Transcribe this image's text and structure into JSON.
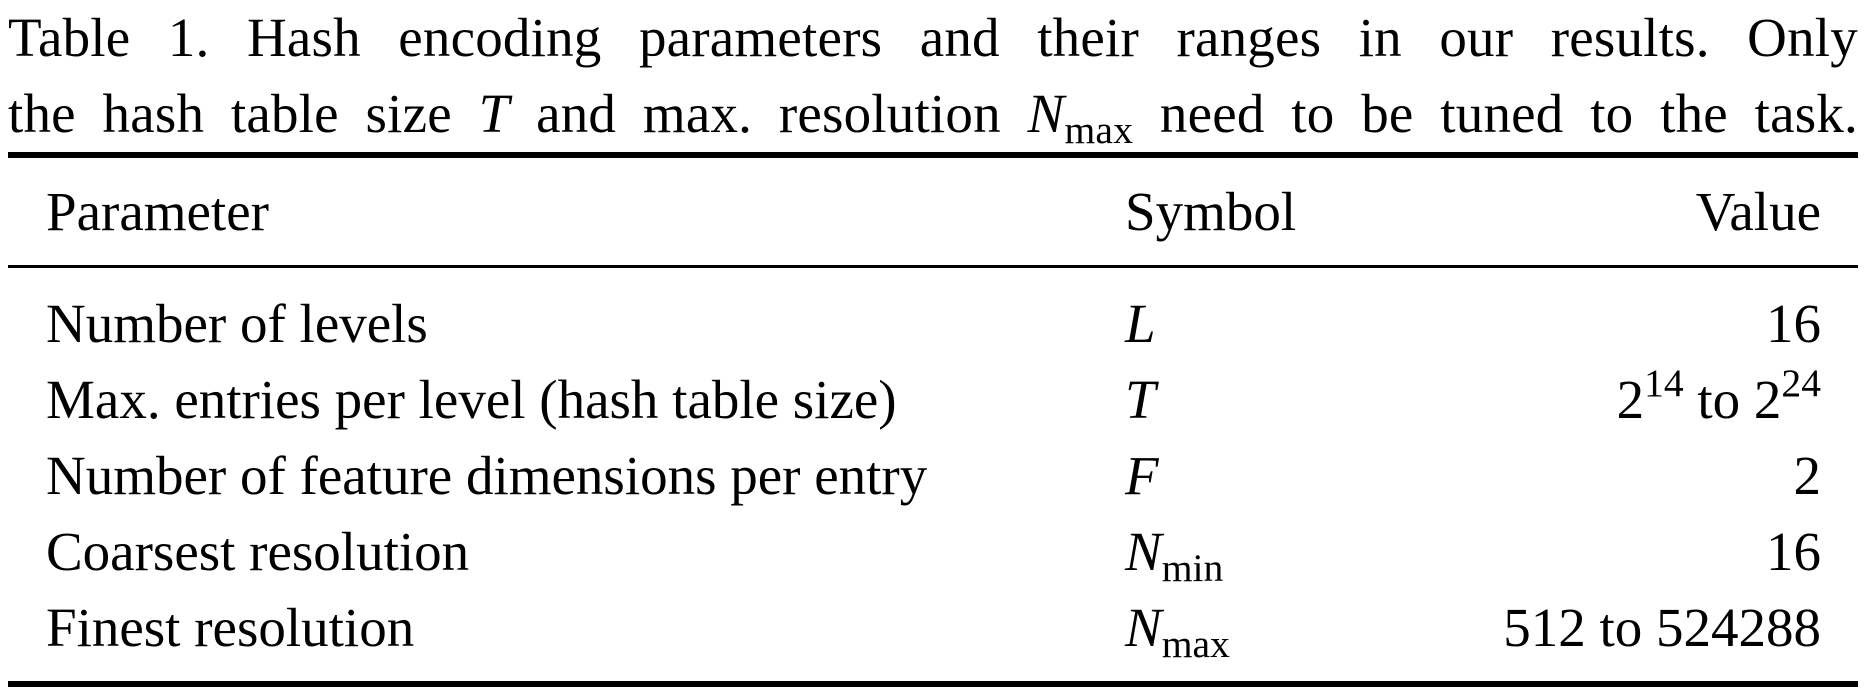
{
  "caption": {
    "line1": "Table 1.  Hash encoding parameters and their ranges in our results. Only",
    "line2_prefix": "the hash table size ",
    "line2_T": "T",
    "line2_mid": " and max. resolution ",
    "line2_N": "N",
    "line2_N_sub": "max",
    "line2_suffix": " need to be tuned to the task."
  },
  "table": {
    "headers": {
      "parameter": "Parameter",
      "symbol": "Symbol",
      "value": "Value"
    },
    "rows": [
      {
        "parameter": "Number of levels",
        "symbol": "L",
        "symbol_sub": "",
        "value": "16"
      },
      {
        "parameter": "Max. entries per level (hash table size)",
        "symbol": "T",
        "symbol_sub": "",
        "value_base1": "2",
        "value_exp1": "14",
        "value_mid": " to ",
        "value_base2": "2",
        "value_exp2": "24"
      },
      {
        "parameter": "Number of feature dimensions per entry",
        "symbol": "F",
        "symbol_sub": "",
        "value": "2"
      },
      {
        "parameter": "Coarsest resolution",
        "symbol": "N",
        "symbol_sub": "min",
        "value": "16"
      },
      {
        "parameter": "Finest resolution",
        "symbol": "N",
        "symbol_sub": "max",
        "value": "512 to 524288"
      }
    ]
  }
}
